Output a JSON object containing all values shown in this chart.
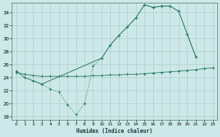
{
  "xlabel": "Humidex (Indice chaleur)",
  "bg_color": "#cde8e8",
  "grid_color": "#b0d0d0",
  "line_color": "#2a7a6a",
  "xlim": [
    -0.5,
    23.5
  ],
  "ylim": [
    17.5,
    35.5
  ],
  "yticks": [
    18,
    20,
    22,
    24,
    26,
    28,
    30,
    32,
    34
  ],
  "xticks": [
    0,
    1,
    2,
    3,
    4,
    5,
    6,
    7,
    8,
    9,
    10,
    11,
    12,
    13,
    14,
    15,
    16,
    17,
    18,
    19,
    20,
    21,
    22,
    23
  ],
  "series1_x": [
    0,
    1,
    2,
    3,
    10,
    11,
    12,
    13,
    14,
    15,
    16,
    17,
    18,
    19,
    20,
    21
  ],
  "series1_y": [
    25.0,
    24.0,
    23.5,
    23.0,
    27.0,
    29.0,
    30.5,
    31.8,
    33.2,
    35.2,
    34.8,
    35.0,
    35.0,
    34.2,
    30.7,
    27.2
  ],
  "series2_x": [
    2,
    3,
    4,
    5,
    6,
    7,
    8,
    9,
    10,
    11,
    12,
    13,
    14,
    15,
    16,
    17,
    18,
    19,
    20,
    21
  ],
  "series2_y": [
    23.5,
    23.0,
    22.2,
    21.8,
    19.8,
    18.3,
    20.0,
    25.8,
    27.0,
    29.0,
    30.5,
    31.8,
    33.2,
    35.2,
    34.8,
    35.0,
    35.0,
    34.2,
    30.7,
    27.2
  ],
  "series3_x": [
    0,
    1,
    2,
    3,
    4,
    5,
    6,
    7,
    8,
    9,
    10,
    11,
    12,
    13,
    14,
    15,
    16,
    17,
    18,
    19,
    20,
    21,
    22,
    23
  ],
  "series3_y": [
    24.8,
    24.5,
    24.3,
    24.2,
    24.2,
    24.2,
    24.2,
    24.2,
    24.2,
    24.3,
    24.3,
    24.4,
    24.4,
    24.5,
    24.5,
    24.6,
    24.7,
    24.8,
    24.9,
    25.0,
    25.1,
    25.2,
    25.4,
    25.5
  ]
}
